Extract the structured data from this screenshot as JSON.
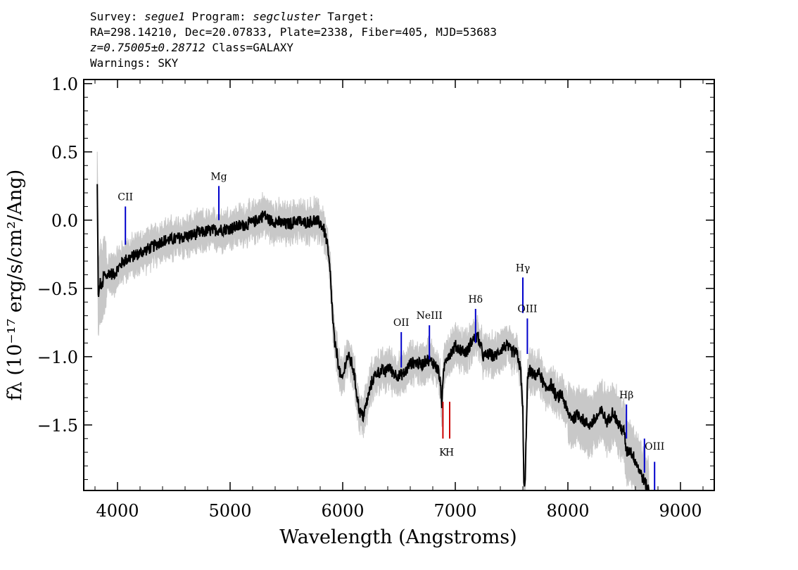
{
  "header": {
    "line1": {
      "survey_label": "Survey:",
      "survey": "segue1",
      "program_label": "Program:",
      "program": "segcluster",
      "target_label": "Target:"
    },
    "line2": "RA=298.14210, Dec=20.07833, Plate=2338, Fiber=405, MJD=53683",
    "line3": {
      "z": "z=0.75005±0.28712",
      "class_text": "Class=GALAXY"
    },
    "line4": "Warnings: SKY"
  },
  "chart_data": {
    "type": "line",
    "xlabel": "Wavelength (Angstroms)",
    "ylabel": "fλ (10⁻¹⁷ erg/s/cm²/Ang)",
    "xlim": [
      3700,
      9300
    ],
    "ylim": [
      -1.98,
      1.03
    ],
    "x_ticks": [
      4000,
      5000,
      6000,
      7000,
      8000,
      9000
    ],
    "x_tick_labels": [
      "4000",
      "5000",
      "6000",
      "7000",
      "8000",
      "9000"
    ],
    "y_ticks": [
      1.0,
      0.5,
      0.0,
      -0.5,
      -1.0,
      -1.5
    ],
    "y_tick_labels": [
      "1.0",
      "0.5",
      "0.0",
      "−0.5",
      "−1.0",
      "−1.5"
    ],
    "grid": false,
    "series": [
      {
        "color": "#000000",
        "error_color": "#c8c8c8",
        "x": [
          3820,
          3830,
          3845,
          3860,
          3880,
          3900,
          3930,
          3960,
          4000,
          4050,
          4100,
          4150,
          4200,
          4300,
          4400,
          4500,
          4600,
          4700,
          4800,
          4900,
          5000,
          5100,
          5200,
          5250,
          5300,
          5350,
          5400,
          5450,
          5500,
          5550,
          5600,
          5650,
          5700,
          5750,
          5800,
          5830,
          5860,
          5890,
          5910,
          5930,
          5950,
          5970,
          5990,
          6010,
          6030,
          6050,
          6080,
          6100,
          6130,
          6150,
          6180,
          6200,
          6230,
          6260,
          6300,
          6350,
          6380,
          6400,
          6450,
          6500,
          6550,
          6600,
          6650,
          6700,
          6750,
          6800,
          6850,
          6870,
          6880,
          6890,
          6900,
          6920,
          6950,
          6980,
          7000,
          7050,
          7100,
          7150,
          7200,
          7250,
          7300,
          7350,
          7400,
          7450,
          7500,
          7550,
          7580,
          7600,
          7610,
          7620,
          7630,
          7640,
          7660,
          7700,
          7750,
          7800,
          7850,
          7900,
          7950,
          8000,
          8050,
          8100,
          8150,
          8200,
          8250,
          8300,
          8350,
          8400,
          8450,
          8500,
          8520,
          8550,
          8600,
          8650,
          8700,
          8720
        ],
        "values": [
          0.25,
          -0.6,
          -0.45,
          -0.5,
          -0.4,
          -0.42,
          -0.38,
          -0.4,
          -0.36,
          -0.3,
          -0.28,
          -0.26,
          -0.24,
          -0.2,
          -0.15,
          -0.14,
          -0.12,
          -0.1,
          -0.08,
          -0.07,
          -0.06,
          -0.04,
          -0.02,
          0.01,
          0.04,
          0.0,
          -0.01,
          -0.02,
          -0.03,
          -0.02,
          0.0,
          -0.02,
          -0.01,
          0.0,
          -0.02,
          -0.06,
          -0.16,
          -0.4,
          -0.7,
          -0.92,
          -0.98,
          -1.1,
          -1.18,
          -1.12,
          -1.02,
          -1.0,
          -1.05,
          -1.12,
          -1.3,
          -1.4,
          -1.44,
          -1.38,
          -1.28,
          -1.18,
          -1.12,
          -1.1,
          -1.12,
          -1.07,
          -1.12,
          -1.14,
          -1.12,
          -1.05,
          -1.04,
          -1.06,
          -1.02,
          -1.04,
          -1.1,
          -1.22,
          -1.34,
          -1.22,
          -1.08,
          -1.0,
          -0.98,
          -0.95,
          -0.92,
          -0.95,
          -0.97,
          -0.88,
          -0.85,
          -1.0,
          -0.98,
          -1.0,
          -0.95,
          -0.92,
          -0.96,
          -0.98,
          -1.1,
          -1.4,
          -1.98,
          -1.95,
          -1.55,
          -1.18,
          -1.1,
          -1.14,
          -1.12,
          -1.24,
          -1.2,
          -1.3,
          -1.28,
          -1.42,
          -1.45,
          -1.42,
          -1.48,
          -1.5,
          -1.45,
          -1.4,
          -1.48,
          -1.4,
          -1.5,
          -1.55,
          -1.7,
          -1.68,
          -1.76,
          -1.86,
          -1.95,
          -1.98
        ]
      }
    ],
    "line_labels": [
      {
        "name": "CII",
        "label": "CII",
        "x": 4070,
        "y_top": 0.1,
        "y_bottom": -0.18,
        "color": "#0000cc"
      },
      {
        "name": "Mg",
        "label": "Mg",
        "x": 4900,
        "y_top": 0.25,
        "y_bottom": 0.0,
        "color": "#0000cc"
      },
      {
        "name": "OII",
        "label": "OII",
        "x": 6520,
        "y_top": -0.82,
        "y_bottom": -1.08,
        "color": "#0000cc"
      },
      {
        "name": "NeIII",
        "label": "NeIII",
        "x": 6770,
        "y_top": -0.77,
        "y_bottom": -1.02,
        "color": "#0000cc"
      },
      {
        "name": "Hdelta",
        "label": "Hδ",
        "x": 7180,
        "y_top": -0.65,
        "y_bottom": -0.9,
        "color": "#0000cc"
      },
      {
        "name": "Hgamma",
        "label": "Hγ",
        "x": 7600,
        "y_top": -0.42,
        "y_bottom": -0.68,
        "color": "#0000cc"
      },
      {
        "name": "OIII-1",
        "label": "OIII",
        "x": 7640,
        "y_top": -0.72,
        "y_bottom": -0.98,
        "color": "#0000cc"
      },
      {
        "name": "Hbeta",
        "label": "Hβ",
        "x": 8520,
        "y_top": -1.35,
        "y_bottom": -1.6,
        "color": "#0000cc"
      },
      {
        "name": "OIII-2",
        "label": "OIII",
        "x": 8770,
        "y_top": -1.77,
        "y_bottom": -2.0,
        "color": "#0000cc",
        "label_y": -1.68
      },
      {
        "name": "OIII-3",
        "label": "",
        "x": 8680,
        "y_top": -1.6,
        "y_bottom": -1.85,
        "color": "#0000cc"
      },
      {
        "name": "K",
        "label": "K",
        "x": 6890,
        "y_top": -1.33,
        "y_bottom": -1.6,
        "color": "#cc0000",
        "label_below": true
      },
      {
        "name": "H",
        "label": "H",
        "x": 6950,
        "y_top": -1.33,
        "y_bottom": -1.6,
        "color": "#cc0000",
        "label_below": true
      }
    ]
  }
}
